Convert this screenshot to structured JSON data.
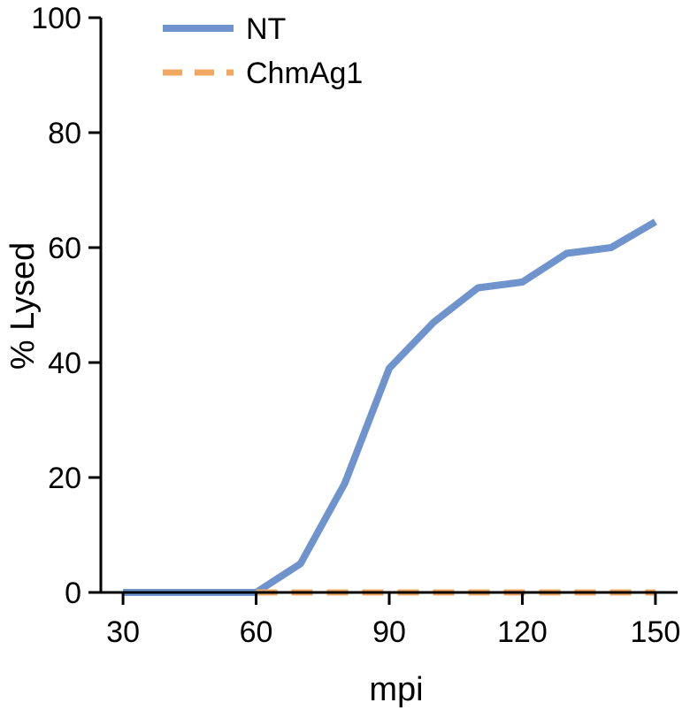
{
  "chart_data": {
    "type": "line",
    "title": "",
    "xlabel": "mpi",
    "ylabel": "% Lysed",
    "xlim": [
      25,
      155
    ],
    "ylim": [
      0,
      100
    ],
    "xticks": [
      30,
      60,
      90,
      120,
      150
    ],
    "yticks": [
      0,
      20,
      40,
      60,
      80,
      100
    ],
    "grid": false,
    "legend_position": "top-left",
    "series": [
      {
        "name": "NT",
        "color": "#6f93cd",
        "style": "solid",
        "x": [
          30,
          40,
          50,
          60,
          70,
          80,
          90,
          100,
          110,
          120,
          130,
          140,
          150
        ],
        "y": [
          0,
          0,
          0,
          0,
          5,
          19,
          39,
          47,
          53,
          54,
          59,
          60,
          64.5
        ]
      },
      {
        "name": "ChmAg1",
        "color": "#f0a860",
        "style": "dashed",
        "x": [
          60,
          70,
          80,
          90,
          100,
          110,
          120,
          130,
          140,
          150
        ],
        "y": [
          0,
          0,
          0,
          0,
          0,
          0,
          0,
          0,
          0,
          0
        ]
      }
    ]
  }
}
